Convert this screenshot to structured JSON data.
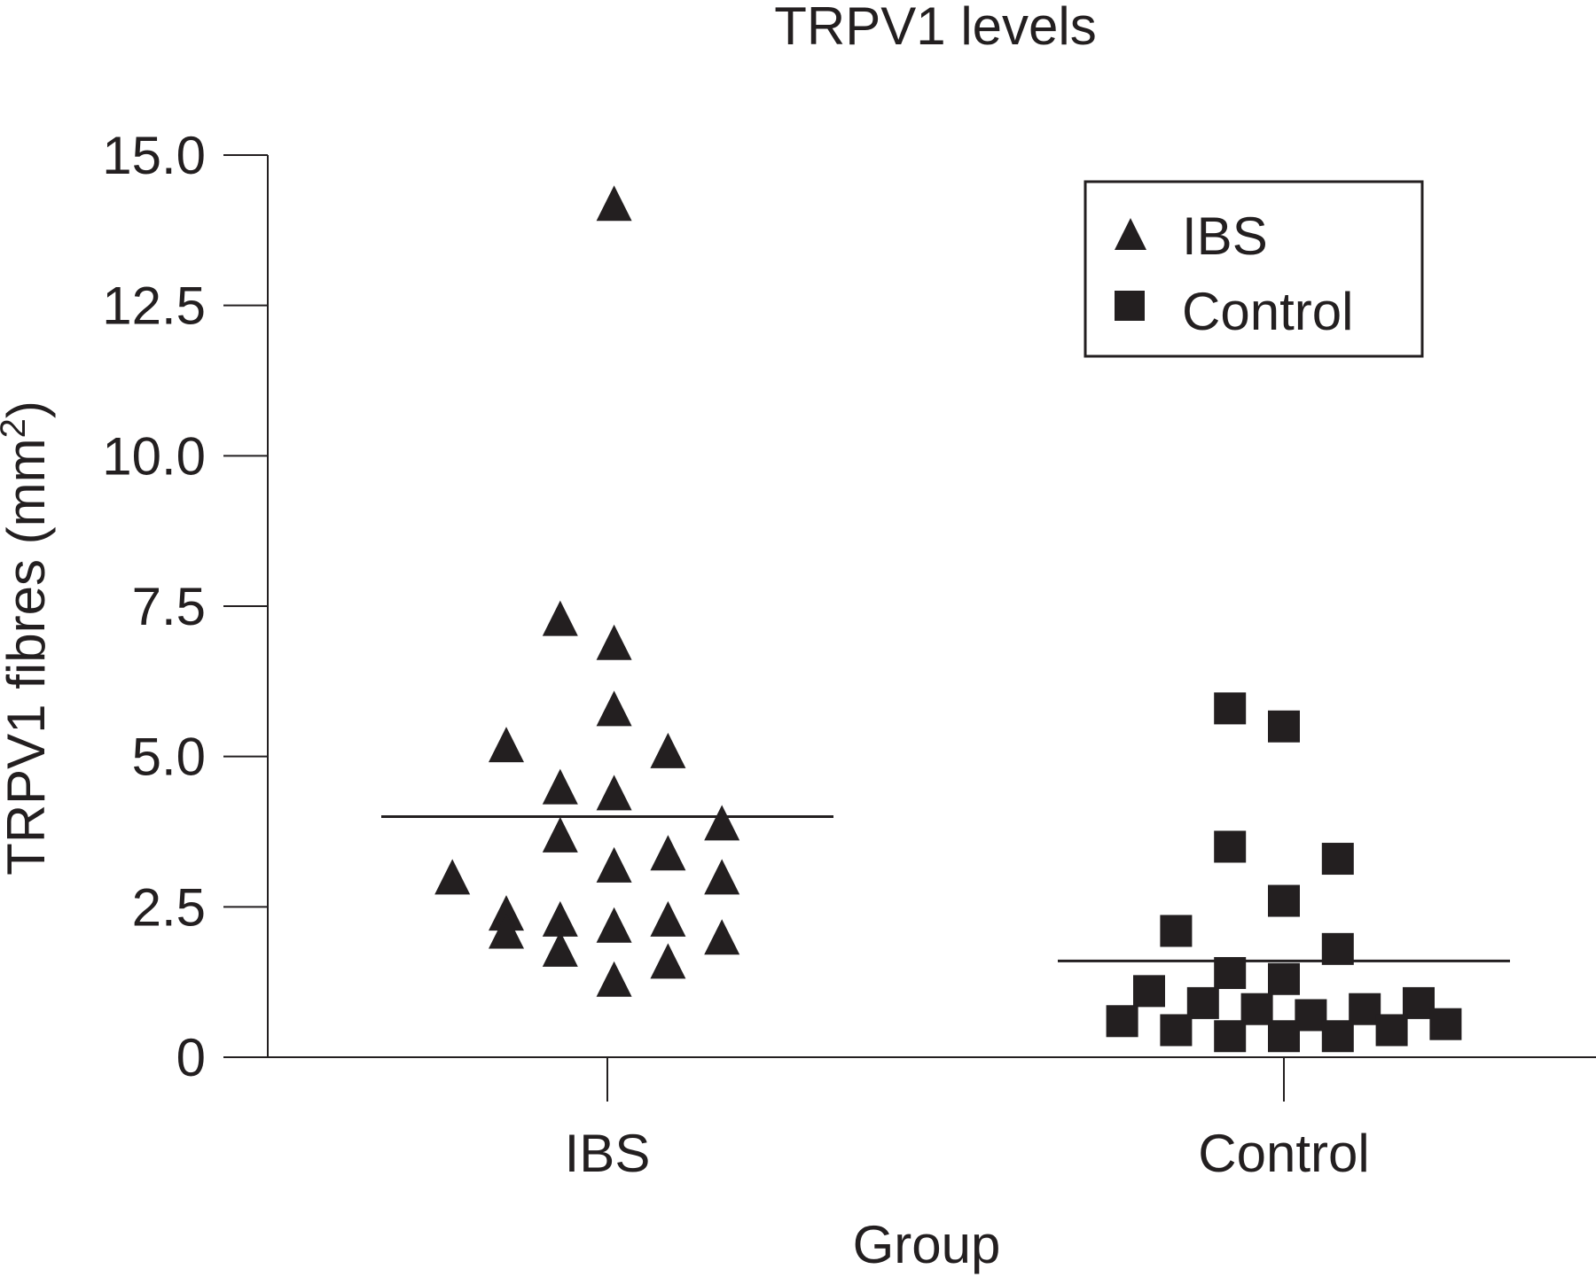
{
  "chart_data": {
    "type": "scatter",
    "title": "TRPV1 levels",
    "xlabel": "Group",
    "ylabel": "TRPV1 fibres (mm²)",
    "ylim": [
      0,
      15
    ],
    "yticks": [
      "0",
      "2.5",
      "5.0",
      "7.5",
      "10.0",
      "12.5",
      "15.0"
    ],
    "categories": [
      "IBS",
      "Control"
    ],
    "legend_position": "top-right",
    "series": [
      {
        "name": "IBS",
        "marker": "triangle",
        "mean": 4.0,
        "points": [
          {
            "x": 0.51,
            "y": 14.2
          },
          {
            "x": 0.43,
            "y": 7.3
          },
          {
            "x": 0.51,
            "y": 6.9
          },
          {
            "x": 0.51,
            "y": 5.8
          },
          {
            "x": 0.35,
            "y": 5.2
          },
          {
            "x": 0.59,
            "y": 5.1
          },
          {
            "x": 0.43,
            "y": 4.5
          },
          {
            "x": 0.51,
            "y": 4.4
          },
          {
            "x": 0.67,
            "y": 3.9
          },
          {
            "x": 0.43,
            "y": 3.7
          },
          {
            "x": 0.51,
            "y": 3.2
          },
          {
            "x": 0.59,
            "y": 3.4
          },
          {
            "x": 0.27,
            "y": 3.0
          },
          {
            "x": 0.67,
            "y": 3.0
          },
          {
            "x": 0.35,
            "y": 2.4
          },
          {
            "x": 0.35,
            "y": 2.1
          },
          {
            "x": 0.43,
            "y": 2.3
          },
          {
            "x": 0.51,
            "y": 2.2
          },
          {
            "x": 0.59,
            "y": 2.3
          },
          {
            "x": 0.67,
            "y": 2.0
          },
          {
            "x": 0.43,
            "y": 1.8
          },
          {
            "x": 0.59,
            "y": 1.6
          },
          {
            "x": 0.51,
            "y": 1.3
          }
        ]
      },
      {
        "name": "Control",
        "marker": "square",
        "mean": 1.6,
        "points": [
          {
            "x": 1.42,
            "y": 5.8
          },
          {
            "x": 1.5,
            "y": 5.5
          },
          {
            "x": 1.42,
            "y": 3.5
          },
          {
            "x": 1.58,
            "y": 3.3
          },
          {
            "x": 1.5,
            "y": 2.6
          },
          {
            "x": 1.34,
            "y": 2.1
          },
          {
            "x": 1.58,
            "y": 1.8
          },
          {
            "x": 1.42,
            "y": 1.4
          },
          {
            "x": 1.5,
            "y": 1.3
          },
          {
            "x": 1.3,
            "y": 1.1
          },
          {
            "x": 1.38,
            "y": 0.9
          },
          {
            "x": 1.46,
            "y": 0.8
          },
          {
            "x": 1.54,
            "y": 0.7
          },
          {
            "x": 1.62,
            "y": 0.8
          },
          {
            "x": 1.7,
            "y": 0.9
          },
          {
            "x": 1.26,
            "y": 0.6
          },
          {
            "x": 1.34,
            "y": 0.45
          },
          {
            "x": 1.42,
            "y": 0.35
          },
          {
            "x": 1.5,
            "y": 0.35
          },
          {
            "x": 1.58,
            "y": 0.35
          },
          {
            "x": 1.66,
            "y": 0.45
          },
          {
            "x": 1.74,
            "y": 0.55
          }
        ]
      }
    ]
  }
}
